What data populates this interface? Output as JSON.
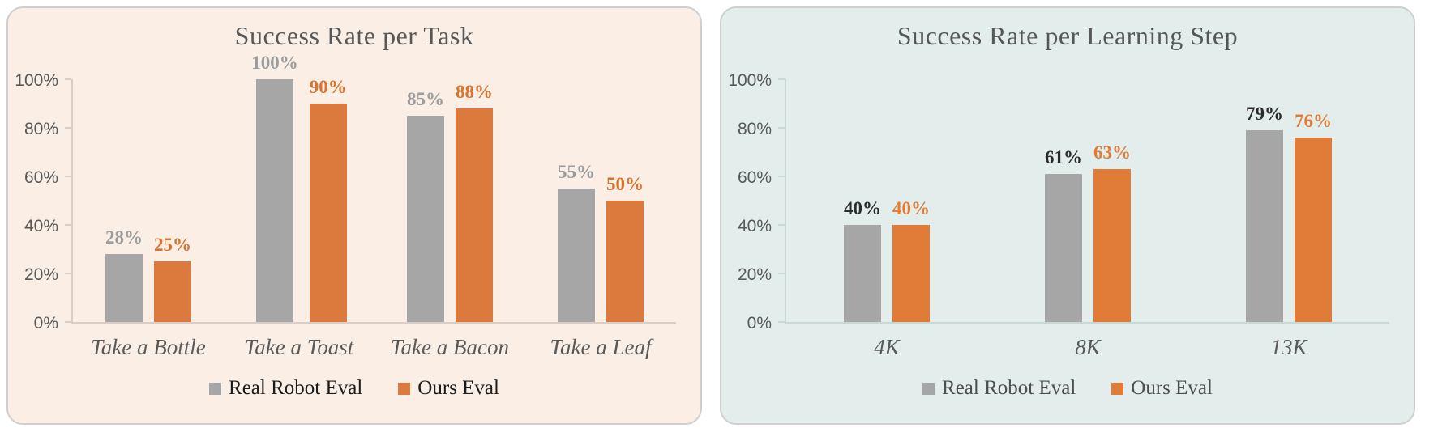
{
  "chart_data": [
    {
      "type": "bar",
      "title": "Success Rate per Task",
      "categories": [
        "Take a Bottle",
        "Take a Toast",
        "Take a Bacon",
        "Take a Leaf"
      ],
      "series": [
        {
          "name": "Real Robot Eval",
          "color": "#A6A6A6",
          "label_color": "#9C9C9C",
          "values": [
            28,
            100,
            85,
            55
          ]
        },
        {
          "name": "Ours Eval",
          "color": "#DB7A3C",
          "label_color": "#D8722F",
          "values": [
            25,
            90,
            88,
            50
          ]
        }
      ],
      "value_suffix": "%",
      "y_ticks": [
        0,
        20,
        40,
        60,
        80,
        100
      ],
      "ylim": [
        0,
        100
      ],
      "grid": false,
      "legend_position": "bottom",
      "panel_bg": "#FAEEE5",
      "panel_border": "#CFCFCF",
      "title_color": "#575757",
      "tick_label_color": "#595959",
      "category_color": "#595959",
      "axis_color": "#D8CEC7",
      "legend_text_color": "#1C1C1C"
    },
    {
      "type": "bar",
      "title": "Success Rate per Learning Step",
      "categories": [
        "4K",
        "8K",
        "13K"
      ],
      "series": [
        {
          "name": "Real Robot Eval",
          "color": "#A6A6A6",
          "label_color": "#2B2B2B",
          "values": [
            40,
            61,
            79
          ]
        },
        {
          "name": "Ours Eval",
          "color": "#E07B38",
          "label_color": "#E07B38",
          "values": [
            40,
            63,
            76
          ]
        }
      ],
      "value_suffix": "%",
      "y_ticks": [
        0,
        20,
        40,
        60,
        80,
        100
      ],
      "ylim": [
        0,
        100
      ],
      "grid": false,
      "legend_position": "bottom",
      "panel_bg": "#E3EEEC",
      "panel_border": "#CFCFCF",
      "title_color": "#575757",
      "tick_label_color": "#595959",
      "category_color": "#595959",
      "axis_color": "#C8D8D5",
      "legend_text_color": "#4D4D4D"
    }
  ]
}
